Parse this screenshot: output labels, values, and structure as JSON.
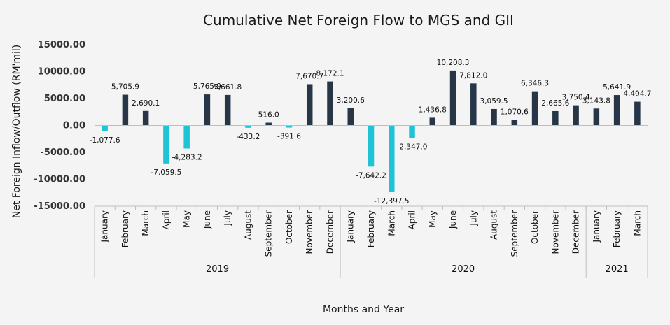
{
  "chart_data": {
    "type": "bar",
    "title": "Cumulative Net Foreign Flow to MGS and GII",
    "xlabel": "Months and Year",
    "ylabel": "Net Foreign Inflow/Outflow (RM'mil)",
    "ylim": [
      -15000,
      15000
    ],
    "yticks": [
      15000,
      10000,
      5000,
      0,
      -5000,
      -10000,
      -15000
    ],
    "ytick_labels": [
      "15000.00",
      "10000.00",
      "5000.00",
      "0.00",
      "-5000.00",
      "-10000.00",
      "-15000.00"
    ],
    "grid": false,
    "legend": "none",
    "colors": {
      "positive": "#263646",
      "negative": "#1fc3d6"
    },
    "years": [
      {
        "label": "2019",
        "count": 12
      },
      {
        "label": "2020",
        "count": 12
      },
      {
        "label": "2021",
        "count": 3
      }
    ],
    "categories": [
      "January",
      "February",
      "March",
      "April",
      "May",
      "June",
      "July",
      "August",
      "September",
      "October",
      "November",
      "December",
      "January",
      "February",
      "March",
      "April",
      "May",
      "June",
      "July",
      "August",
      "September",
      "October",
      "November",
      "December",
      "January",
      "February",
      "March"
    ],
    "values": [
      -1077.6,
      5705.9,
      2690.1,
      -7059.5,
      -4283.2,
      5765.9,
      5661.8,
      -433.2,
      516.0,
      -391.6,
      7670.7,
      8172.1,
      3200.6,
      -7642.2,
      -12397.5,
      -2347.0,
      1436.8,
      10208.3,
      7812.0,
      3059.5,
      1070.6,
      6346.3,
      2665.6,
      3750.4,
      3143.8,
      5641.9,
      4404.7
    ],
    "data_labels": [
      "-1,077.6",
      "5,705.9",
      "2,690.1",
      "-7,059.5",
      "-4,283.2",
      "5,765.9",
      "5,661.8",
      "-433.2",
      "516.0",
      "-391.6",
      "7,670.7",
      "8,172.1",
      "3,200.6",
      "-7,642.2",
      "-12,397.5",
      "-2,347.0",
      "1,436.8",
      "10,208.3",
      "7,812.0",
      "3,059.5",
      "1,070.6",
      "6,346.3",
      "2,665.6",
      "3,750.4",
      "3,143.8",
      "5,641.9",
      "4,404.7"
    ]
  }
}
